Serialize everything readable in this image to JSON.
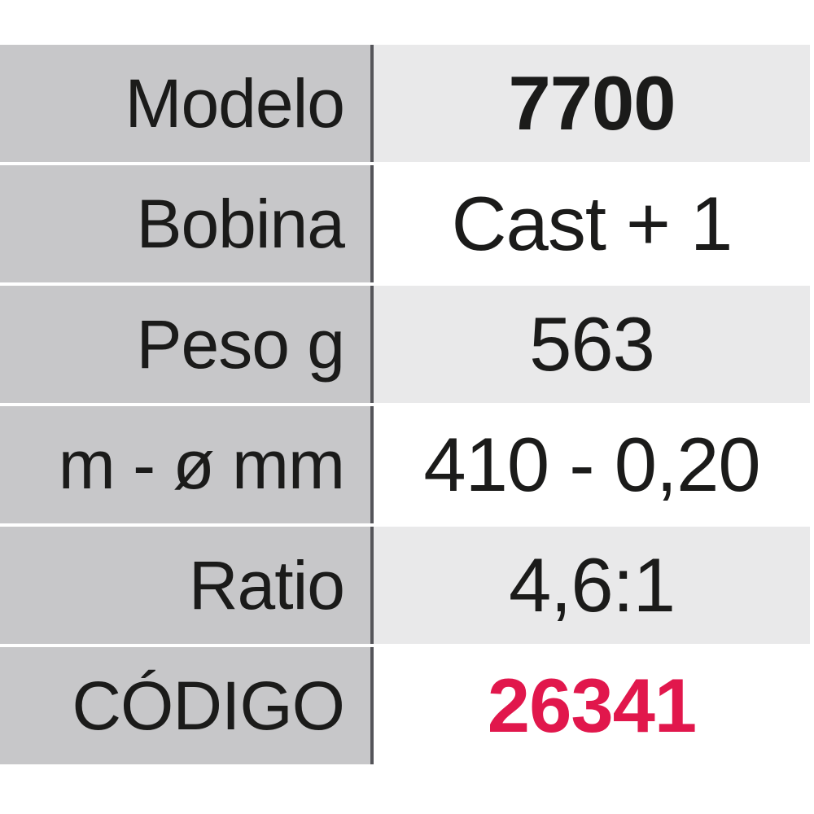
{
  "page": {
    "background": "#ffffff"
  },
  "colors": {
    "label_column_bg": "#c7c7c9",
    "value_cell_gray_bg": "#e9e9ea",
    "value_cell_white_bg": "#ffffff",
    "column_divider": "#55555a",
    "text": "#1b1b1a",
    "accent": "#e1174c"
  },
  "table": {
    "rows": [
      {
        "label": "Modelo",
        "value": "7700",
        "value_shade": "gray",
        "value_weight": "bold",
        "value_color": "text"
      },
      {
        "label": "Bobina",
        "value": "Cast + 1",
        "value_shade": "white",
        "value_weight": "regular",
        "value_color": "text"
      },
      {
        "label": "Peso g",
        "value": "563",
        "value_shade": "gray",
        "value_weight": "regular",
        "value_color": "text"
      },
      {
        "label": "m - ø mm",
        "value": "410 - 0,20",
        "value_shade": "white",
        "value_weight": "regular",
        "value_color": "text"
      },
      {
        "label": "Ratio",
        "value": "4,6:1",
        "value_shade": "gray",
        "value_weight": "regular",
        "value_color": "text"
      },
      {
        "label": "CÓDIGO",
        "value": "26341",
        "value_shade": "white",
        "value_weight": "bold",
        "value_color": "accent"
      }
    ]
  }
}
